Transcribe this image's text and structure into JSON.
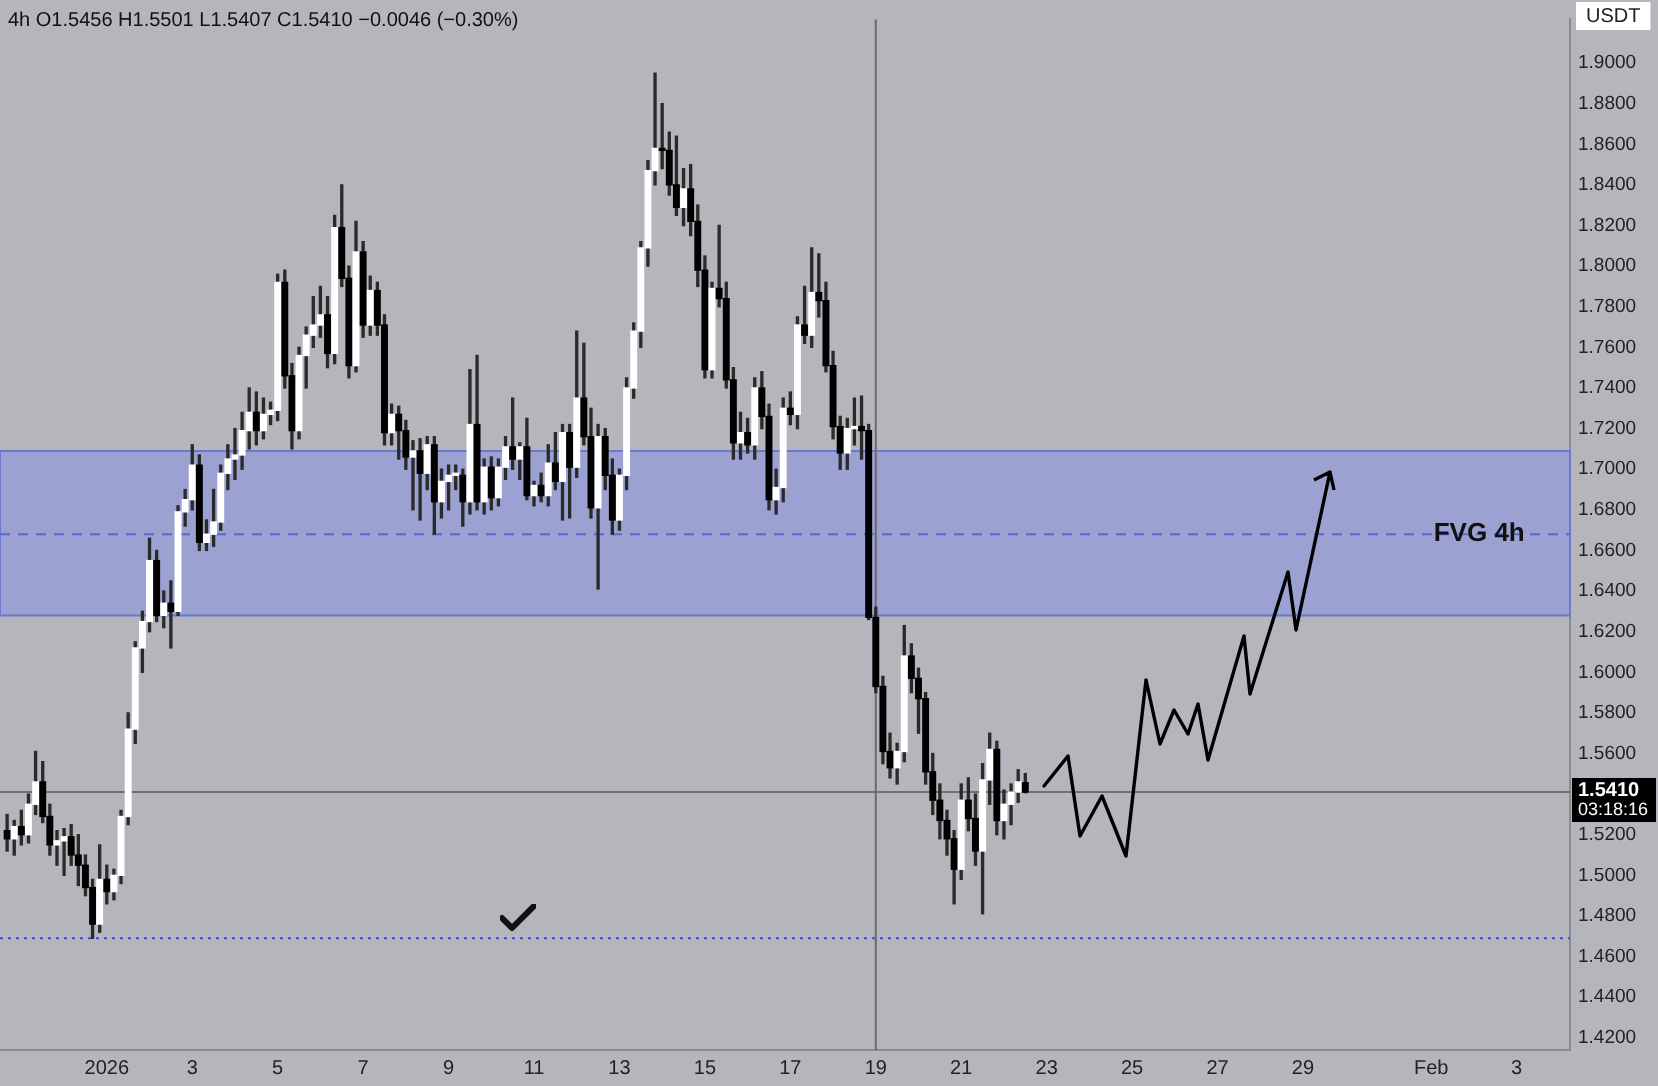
{
  "chart_data": {
    "type": "candlestick",
    "title": "4h O1.5456 H1.5501 L1.5407 C1.5410 −0.0046 (−0.30%)",
    "ylabel": "USDT",
    "xlim": [
      "2025-12-29T12:00",
      "2026-02-04T06:00"
    ],
    "xticks": [
      {
        "value": "2026-01-01",
        "label": "2026"
      },
      {
        "value": "2026-01-03",
        "label": "3"
      },
      {
        "value": "2026-01-05",
        "label": "5"
      },
      {
        "value": "2026-01-07",
        "label": "7"
      },
      {
        "value": "2026-01-09",
        "label": "9"
      },
      {
        "value": "2026-01-11",
        "label": "11"
      },
      {
        "value": "2026-01-13",
        "label": "13"
      },
      {
        "value": "2026-01-15",
        "label": "15"
      },
      {
        "value": "2026-01-17",
        "label": "17"
      },
      {
        "value": "2026-01-19",
        "label": "19"
      },
      {
        "value": "2026-01-21",
        "label": "21"
      },
      {
        "value": "2026-01-23",
        "label": "23"
      },
      {
        "value": "2026-01-25",
        "label": "25"
      },
      {
        "value": "2026-01-27",
        "label": "27"
      },
      {
        "value": "2026-01-29",
        "label": "29"
      },
      {
        "value": "2026-02-01",
        "label": "Feb"
      },
      {
        "value": "2026-02-03",
        "label": "3"
      }
    ],
    "ylim": [
      1.414,
      1.9215
    ],
    "yticks": [
      {
        "value": 1.42,
        "label": "1.4200"
      },
      {
        "value": 1.44,
        "label": "1.4400"
      },
      {
        "value": 1.46,
        "label": "1.4600"
      },
      {
        "value": 1.48,
        "label": "1.4800"
      },
      {
        "value": 1.5,
        "label": "1.5000"
      },
      {
        "value": 1.52,
        "label": "1.5200"
      },
      {
        "value": 1.54,
        "label": null
      },
      {
        "value": 1.56,
        "label": "1.5600"
      },
      {
        "value": 1.58,
        "label": "1.5800"
      },
      {
        "value": 1.6,
        "label": "1.6000"
      },
      {
        "value": 1.62,
        "label": "1.6200"
      },
      {
        "value": 1.64,
        "label": "1.6400"
      },
      {
        "value": 1.66,
        "label": "1.6600"
      },
      {
        "value": 1.68,
        "label": "1.6800"
      },
      {
        "value": 1.7,
        "label": "1.7000"
      },
      {
        "value": 1.72,
        "label": "1.7200"
      },
      {
        "value": 1.74,
        "label": "1.7400"
      },
      {
        "value": 1.76,
        "label": "1.7600"
      },
      {
        "value": 1.78,
        "label": "1.7800"
      },
      {
        "value": 1.8,
        "label": "1.8000"
      },
      {
        "value": 1.82,
        "label": "1.8200"
      },
      {
        "value": 1.84,
        "label": "1.8400"
      },
      {
        "value": 1.86,
        "label": "1.8600"
      },
      {
        "value": 1.88,
        "label": "1.8800"
      },
      {
        "value": 1.9,
        "label": "1.9000"
      }
    ],
    "series": [
      {
        "x": [
          "2025-12-29T16:00",
          "2025-12-29T20:00",
          "2025-12-30T00:00",
          "2025-12-30T04:00",
          "2025-12-30T08:00",
          "2025-12-30T12:00",
          "2025-12-30T16:00",
          "2025-12-30T20:00",
          "2025-12-31T00:00",
          "2025-12-31T04:00",
          "2025-12-31T08:00",
          "2025-12-31T12:00",
          "2025-12-31T16:00",
          "2025-12-31T20:00",
          "2026-01-01T00:00",
          "2026-01-01T04:00",
          "2026-01-01T08:00",
          "2026-01-01T12:00",
          "2026-01-01T16:00",
          "2026-01-01T20:00",
          "2026-01-02T00:00",
          "2026-01-02T04:00",
          "2026-01-02T08:00",
          "2026-01-02T12:00",
          "2026-01-02T16:00",
          "2026-01-02T20:00",
          "2026-01-03T00:00",
          "2026-01-03T04:00",
          "2026-01-03T08:00",
          "2026-01-03T12:00",
          "2026-01-03T16:00",
          "2026-01-03T20:00",
          "2026-01-04T00:00",
          "2026-01-04T04:00",
          "2026-01-04T08:00",
          "2026-01-04T12:00",
          "2026-01-04T16:00",
          "2026-01-04T20:00",
          "2026-01-05T00:00",
          "2026-01-05T04:00",
          "2026-01-05T08:00",
          "2026-01-05T12:00",
          "2026-01-05T16:00",
          "2026-01-05T20:00",
          "2026-01-06T00:00",
          "2026-01-06T04:00",
          "2026-01-06T08:00",
          "2026-01-06T12:00",
          "2026-01-06T16:00",
          "2026-01-06T20:00",
          "2026-01-07T00:00",
          "2026-01-07T04:00",
          "2026-01-07T08:00",
          "2026-01-07T12:00",
          "2026-01-07T16:00",
          "2026-01-07T20:00",
          "2026-01-08T00:00",
          "2026-01-08T04:00",
          "2026-01-08T08:00",
          "2026-01-08T12:00",
          "2026-01-08T16:00",
          "2026-01-08T20:00",
          "2026-01-09T00:00",
          "2026-01-09T04:00",
          "2026-01-09T08:00",
          "2026-01-09T12:00",
          "2026-01-09T16:00",
          "2026-01-09T20:00",
          "2026-01-10T00:00",
          "2026-01-10T04:00",
          "2026-01-10T08:00",
          "2026-01-10T12:00",
          "2026-01-10T16:00",
          "2026-01-10T20:00",
          "2026-01-11T00:00",
          "2026-01-11T04:00",
          "2026-01-11T08:00",
          "2026-01-11T12:00",
          "2026-01-11T16:00",
          "2026-01-11T20:00",
          "2026-01-12T00:00",
          "2026-01-12T04:00",
          "2026-01-12T08:00",
          "2026-01-12T12:00",
          "2026-01-12T16:00",
          "2026-01-12T20:00",
          "2026-01-13T00:00",
          "2026-01-13T04:00",
          "2026-01-13T08:00",
          "2026-01-13T12:00",
          "2026-01-13T16:00",
          "2026-01-13T20:00",
          "2026-01-14T00:00",
          "2026-01-14T04:00",
          "2026-01-14T08:00",
          "2026-01-14T12:00",
          "2026-01-14T16:00",
          "2026-01-14T20:00",
          "2026-01-15T00:00",
          "2026-01-15T04:00",
          "2026-01-15T08:00",
          "2026-01-15T12:00",
          "2026-01-15T16:00",
          "2026-01-15T20:00",
          "2026-01-16T00:00",
          "2026-01-16T04:00",
          "2026-01-16T08:00",
          "2026-01-16T12:00",
          "2026-01-16T16:00",
          "2026-01-16T20:00",
          "2026-01-17T00:00",
          "2026-01-17T04:00",
          "2026-01-17T08:00",
          "2026-01-17T12:00",
          "2026-01-17T16:00",
          "2026-01-17T20:00",
          "2026-01-18T00:00",
          "2026-01-18T04:00",
          "2026-01-18T08:00",
          "2026-01-18T12:00",
          "2026-01-18T16:00",
          "2026-01-18T20:00",
          "2026-01-19T00:00",
          "2026-01-19T04:00",
          "2026-01-19T08:00",
          "2026-01-19T12:00",
          "2026-01-19T16:00",
          "2026-01-19T20:00",
          "2026-01-20T00:00",
          "2026-01-20T04:00",
          "2026-01-20T08:00",
          "2026-01-20T12:00",
          "2026-01-20T16:00",
          "2026-01-20T20:00",
          "2026-01-21T00:00",
          "2026-01-21T04:00",
          "2026-01-21T08:00",
          "2026-01-21T12:00",
          "2026-01-21T16:00",
          "2026-01-21T20:00",
          "2026-01-22T00:00",
          "2026-01-22T04:00",
          "2026-01-22T08:00",
          "2026-01-22T12:00"
        ],
        "ohlc": [
          [
            1.522,
            1.53,
            1.512,
            1.518
          ],
          [
            1.518,
            1.527,
            1.51,
            1.524
          ],
          [
            1.524,
            1.532,
            1.515,
            1.52
          ],
          [
            1.52,
            1.54,
            1.516,
            1.535
          ],
          [
            1.535,
            1.561,
            1.53,
            1.546
          ],
          [
            1.546,
            1.556,
            1.526,
            1.529
          ],
          [
            1.529,
            1.535,
            1.51,
            1.515
          ],
          [
            1.515,
            1.522,
            1.505,
            1.517
          ],
          [
            1.517,
            1.523,
            1.5,
            1.519
          ],
          [
            1.519,
            1.525,
            1.505,
            1.51
          ],
          [
            1.51,
            1.52,
            1.495,
            1.505
          ],
          [
            1.505,
            1.51,
            1.49,
            1.494
          ],
          [
            1.494,
            1.498,
            1.469,
            1.476
          ],
          [
            1.476,
            1.515,
            1.472,
            1.498
          ],
          [
            1.498,
            1.505,
            1.486,
            1.492
          ],
          [
            1.492,
            1.503,
            1.488,
            1.5
          ],
          [
            1.5,
            1.532,
            1.496,
            1.529
          ],
          [
            1.529,
            1.58,
            1.525,
            1.572
          ],
          [
            1.572,
            1.615,
            1.565,
            1.612
          ],
          [
            1.612,
            1.63,
            1.6,
            1.625
          ],
          [
            1.625,
            1.666,
            1.62,
            1.655
          ],
          [
            1.655,
            1.66,
            1.625,
            1.628
          ],
          [
            1.628,
            1.64,
            1.622,
            1.634
          ],
          [
            1.634,
            1.645,
            1.612,
            1.63
          ],
          [
            1.63,
            1.682,
            1.628,
            1.679
          ],
          [
            1.679,
            1.69,
            1.672,
            1.685
          ],
          [
            1.685,
            1.712,
            1.68,
            1.702
          ],
          [
            1.702,
            1.707,
            1.66,
            1.664
          ],
          [
            1.664,
            1.675,
            1.66,
            1.668
          ],
          [
            1.668,
            1.69,
            1.662,
            1.674
          ],
          [
            1.674,
            1.702,
            1.67,
            1.698
          ],
          [
            1.698,
            1.712,
            1.69,
            1.705
          ],
          [
            1.705,
            1.72,
            1.695,
            1.707
          ],
          [
            1.707,
            1.728,
            1.7,
            1.719
          ],
          [
            1.719,
            1.74,
            1.71,
            1.728
          ],
          [
            1.728,
            1.738,
            1.712,
            1.719
          ],
          [
            1.719,
            1.735,
            1.715,
            1.727
          ],
          [
            1.727,
            1.733,
            1.722,
            1.729
          ],
          [
            1.729,
            1.796,
            1.724,
            1.792
          ],
          [
            1.792,
            1.798,
            1.74,
            1.746
          ],
          [
            1.746,
            1.752,
            1.71,
            1.719
          ],
          [
            1.719,
            1.76,
            1.715,
            1.756
          ],
          [
            1.756,
            1.77,
            1.74,
            1.766
          ],
          [
            1.766,
            1.785,
            1.76,
            1.771
          ],
          [
            1.771,
            1.79,
            1.765,
            1.776
          ],
          [
            1.776,
            1.785,
            1.75,
            1.757
          ],
          [
            1.757,
            1.825,
            1.752,
            1.819
          ],
          [
            1.819,
            1.84,
            1.79,
            1.794
          ],
          [
            1.794,
            1.8,
            1.745,
            1.751
          ],
          [
            1.751,
            1.822,
            1.748,
            1.807
          ],
          [
            1.807,
            1.812,
            1.765,
            1.771
          ],
          [
            1.771,
            1.795,
            1.766,
            1.788
          ],
          [
            1.788,
            1.792,
            1.766,
            1.771
          ],
          [
            1.771,
            1.776,
            1.712,
            1.718
          ],
          [
            1.718,
            1.732,
            1.712,
            1.727
          ],
          [
            1.727,
            1.731,
            1.705,
            1.719
          ],
          [
            1.719,
            1.724,
            1.7,
            1.706
          ],
          [
            1.706,
            1.714,
            1.68,
            1.709
          ],
          [
            1.709,
            1.715,
            1.675,
            1.698
          ],
          [
            1.698,
            1.716,
            1.69,
            1.712
          ],
          [
            1.712,
            1.716,
            1.668,
            1.684
          ],
          [
            1.684,
            1.7,
            1.676,
            1.694
          ],
          [
            1.694,
            1.702,
            1.68,
            1.697
          ],
          [
            1.697,
            1.702,
            1.69,
            1.698
          ],
          [
            1.697,
            1.7,
            1.672,
            1.684
          ],
          [
            1.684,
            1.749,
            1.678,
            1.722
          ],
          [
            1.722,
            1.756,
            1.68,
            1.684
          ],
          [
            1.684,
            1.705,
            1.678,
            1.701
          ],
          [
            1.701,
            1.706,
            1.68,
            1.686
          ],
          [
            1.686,
            1.705,
            1.682,
            1.701
          ],
          [
            1.701,
            1.716,
            1.695,
            1.711
          ],
          [
            1.711,
            1.735,
            1.7,
            1.705
          ],
          [
            1.705,
            1.713,
            1.695,
            1.711
          ],
          [
            1.711,
            1.725,
            1.685,
            1.687
          ],
          [
            1.687,
            1.694,
            1.682,
            1.692
          ],
          [
            1.692,
            1.698,
            1.684,
            1.687
          ],
          [
            1.687,
            1.712,
            1.682,
            1.703
          ],
          [
            1.703,
            1.718,
            1.69,
            1.694
          ],
          [
            1.694,
            1.722,
            1.675,
            1.718
          ],
          [
            1.718,
            1.722,
            1.676,
            1.701
          ],
          [
            1.701,
            1.768,
            1.696,
            1.735
          ],
          [
            1.735,
            1.762,
            1.712,
            1.716
          ],
          [
            1.716,
            1.73,
            1.676,
            1.681
          ],
          [
            1.681,
            1.722,
            1.641,
            1.716
          ],
          [
            1.716,
            1.72,
            1.69,
            1.697
          ],
          [
            1.697,
            1.705,
            1.668,
            1.675
          ],
          [
            1.675,
            1.7,
            1.67,
            1.697
          ],
          [
            1.697,
            1.745,
            1.69,
            1.74
          ],
          [
            1.74,
            1.772,
            1.735,
            1.768
          ],
          [
            1.768,
            1.812,
            1.76,
            1.809
          ],
          [
            1.809,
            1.852,
            1.8,
            1.847
          ],
          [
            1.847,
            1.895,
            1.84,
            1.858
          ],
          [
            1.858,
            1.88,
            1.848,
            1.857
          ],
          [
            1.857,
            1.866,
            1.835,
            1.84
          ],
          [
            1.84,
            1.864,
            1.825,
            1.829
          ],
          [
            1.829,
            1.848,
            1.82,
            1.838
          ],
          [
            1.838,
            1.85,
            1.815,
            1.822
          ],
          [
            1.822,
            1.83,
            1.79,
            1.798
          ],
          [
            1.798,
            1.805,
            1.745,
            1.749
          ],
          [
            1.749,
            1.792,
            1.745,
            1.789
          ],
          [
            1.789,
            1.82,
            1.78,
            1.784
          ],
          [
            1.784,
            1.792,
            1.74,
            1.744
          ],
          [
            1.744,
            1.75,
            1.705,
            1.713
          ],
          [
            1.713,
            1.728,
            1.705,
            1.718
          ],
          [
            1.718,
            1.725,
            1.708,
            1.712
          ],
          [
            1.712,
            1.745,
            1.705,
            1.74
          ],
          [
            1.74,
            1.748,
            1.72,
            1.726
          ],
          [
            1.726,
            1.732,
            1.68,
            1.685
          ],
          [
            1.685,
            1.7,
            1.678,
            1.691
          ],
          [
            1.691,
            1.735,
            1.684,
            1.73
          ],
          [
            1.73,
            1.738,
            1.722,
            1.727
          ],
          [
            1.727,
            1.775,
            1.72,
            1.771
          ],
          [
            1.771,
            1.79,
            1.762,
            1.766
          ],
          [
            1.766,
            1.809,
            1.76,
            1.787
          ],
          [
            1.787,
            1.806,
            1.775,
            1.783
          ],
          [
            1.783,
            1.792,
            1.748,
            1.751
          ],
          [
            1.751,
            1.758,
            1.715,
            1.721
          ],
          [
            1.721,
            1.726,
            1.7,
            1.708
          ],
          [
            1.708,
            1.725,
            1.7,
            1.72
          ],
          [
            1.72,
            1.735,
            1.712,
            1.721
          ],
          [
            1.721,
            1.736,
            1.705,
            1.719
          ],
          [
            1.719,
            1.722,
            1.626,
            1.627
          ],
          [
            1.627,
            1.632,
            1.59,
            1.593
          ],
          [
            1.593,
            1.598,
            1.555,
            1.561
          ],
          [
            1.561,
            1.57,
            1.548,
            1.553
          ],
          [
            1.553,
            1.565,
            1.545,
            1.561
          ],
          [
            1.561,
            1.623,
            1.556,
            1.608
          ],
          [
            1.608,
            1.614,
            1.59,
            1.597
          ],
          [
            1.597,
            1.602,
            1.57,
            1.587
          ],
          [
            1.587,
            1.59,
            1.545,
            1.551
          ],
          [
            1.551,
            1.56,
            1.53,
            1.537
          ],
          [
            1.537,
            1.545,
            1.518,
            1.527
          ],
          [
            1.527,
            1.532,
            1.51,
            1.518
          ],
          [
            1.518,
            1.522,
            1.486,
            1.503
          ],
          [
            1.503,
            1.545,
            1.498,
            1.537
          ],
          [
            1.537,
            1.548,
            1.522,
            1.528
          ],
          [
            1.528,
            1.54,
            1.505,
            1.512
          ],
          [
            1.512,
            1.555,
            1.481,
            1.547
          ],
          [
            1.547,
            1.57,
            1.535,
            1.562
          ],
          [
            1.562,
            1.566,
            1.52,
            1.527
          ],
          [
            1.527,
            1.542,
            1.518,
            1.535
          ],
          [
            1.535,
            1.545,
            1.525,
            1.541
          ],
          [
            1.541,
            1.552,
            1.536,
            1.546
          ],
          [
            1.5456,
            1.5501,
            1.5407,
            1.541
          ]
        ]
      }
    ],
    "bands": [
      {
        "axis": "y",
        "from": 1.628,
        "to": 1.709,
        "color": "#8e98dc"
      }
    ],
    "ref_lines": [
      {
        "axis": "y",
        "value": 1.541,
        "label": "1.5410",
        "color": "#707176"
      },
      {
        "axis": "y",
        "value": 1.469,
        "color": "#3a4ee0",
        "line_style": "dotted"
      },
      {
        "axis": "y",
        "value": 1.668,
        "color": "#5a6ad0",
        "line_style": "dashed"
      },
      {
        "axis": "x",
        "value": "2026-01-19",
        "color": "#6a6b70"
      }
    ],
    "annotations": [
      "03:18:16",
      {
        "text": "FVG 4h",
        "x": "2026-02-02T03:00",
        "y": 1.668
      }
    ]
  }
}
